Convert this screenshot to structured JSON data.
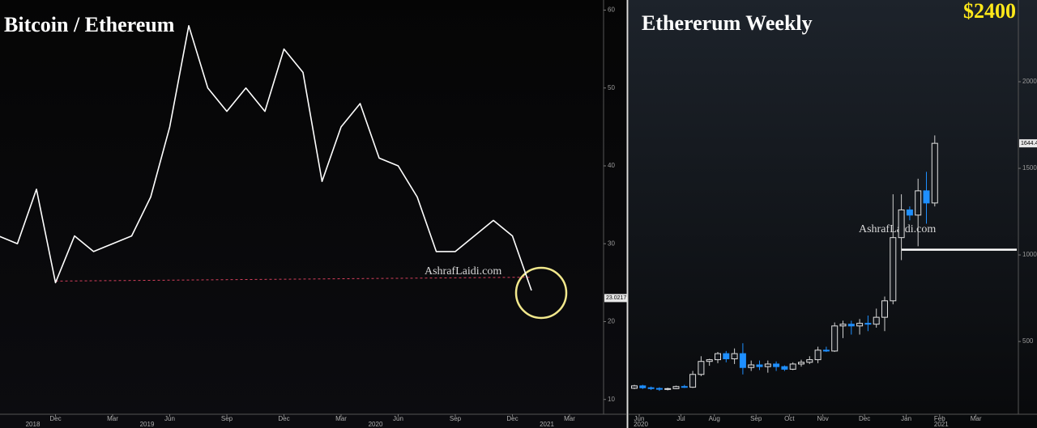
{
  "chart_data": [
    {
      "type": "line",
      "title": "Bitcoin / Ethereum",
      "watermark": "AshrafLaidi.com",
      "x": [
        "2018-09",
        "2018-10",
        "2018-11",
        "2018-12",
        "2019-01",
        "2019-02",
        "2019-03",
        "2019-04",
        "2019-05",
        "2019-06",
        "2019-07",
        "2019-08",
        "2019-09",
        "2019-10",
        "2019-11",
        "2019-12",
        "2020-01",
        "2020-02",
        "2020-03",
        "2020-04",
        "2020-05",
        "2020-06",
        "2020-07",
        "2020-08",
        "2020-09",
        "2020-10",
        "2020-11",
        "2020-12",
        "2021-01"
      ],
      "values": [
        31,
        30,
        37,
        25,
        31,
        29,
        30,
        31,
        36,
        45,
        58,
        50,
        47,
        50,
        47,
        55,
        52,
        38,
        45,
        48,
        41,
        40,
        36,
        29,
        29,
        31,
        33,
        31,
        24
      ],
      "color": "#ffffff",
      "ylim": [
        8.1,
        61.3
      ],
      "yticks": [
        10,
        20,
        30,
        40,
        50,
        60
      ],
      "xticks": [
        {
          "value": "2018-12",
          "label": "Dec"
        },
        {
          "value": "2019-03",
          "label": "Mar"
        },
        {
          "value": "2019-06",
          "label": "Jun"
        },
        {
          "value": "2019-09",
          "label": "Sep"
        },
        {
          "value": "2019-12",
          "label": "Dec"
        },
        {
          "value": "2020-03",
          "label": "Mar"
        },
        {
          "value": "2020-06",
          "label": "Jun"
        },
        {
          "value": "2020-09",
          "label": "Sep"
        },
        {
          "value": "2020-12",
          "label": "Dec"
        },
        {
          "value": "2021-03",
          "label": "Mar"
        }
      ],
      "year_labels": [
        {
          "value": "2018-12",
          "label": "2018"
        },
        {
          "value": "2019-06",
          "label": "2019"
        },
        {
          "value": "2020-06",
          "label": "2020"
        },
        {
          "value": "2021-03",
          "label": "2021"
        }
      ],
      "reference_line": {
        "x": [
          "2018-12",
          "2021-01"
        ],
        "y": [
          25.2,
          25.7
        ],
        "color": "#d6405c"
      },
      "last_price": 23.0217
    },
    {
      "type": "candlestick",
      "title": "Ethererum Weekly",
      "headline": "$2400",
      "watermark": "AshrafLaidi.com",
      "categories": [
        "2020-06",
        "2020-06",
        "2020-06",
        "2020-06",
        "2020-06",
        "2020-07",
        "2020-07",
        "2020-07",
        "2020-07",
        "2020-08",
        "2020-08",
        "2020-08",
        "2020-08",
        "2020-08",
        "2020-09",
        "2020-09",
        "2020-09",
        "2020-09",
        "2020-10",
        "2020-10",
        "2020-10",
        "2020-10",
        "2020-11",
        "2020-11",
        "2020-11",
        "2020-11",
        "2020-11",
        "2020-12",
        "2020-12",
        "2020-12",
        "2020-12",
        "2020-12",
        "2021-01",
        "2021-01",
        "2021-01",
        "2021-01",
        "2021-02"
      ],
      "open": [
        230,
        244,
        233,
        229,
        226,
        228,
        240,
        236,
        310,
        385,
        395,
        430,
        400,
        430,
        350,
        365,
        355,
        370,
        355,
        340,
        370,
        380,
        395,
        450,
        445,
        590,
        600,
        590,
        605,
        600,
        640,
        735,
        1100,
        1260,
        1230,
        1370,
        1300
      ],
      "high": [
        250,
        250,
        240,
        236,
        233,
        245,
        250,
        330,
        415,
        400,
        440,
        445,
        460,
        490,
        390,
        390,
        390,
        385,
        362,
        380,
        395,
        415,
        470,
        470,
        610,
        620,
        620,
        630,
        650,
        690,
        760,
        1350,
        1350,
        1280,
        1440,
        1480,
        1690
      ],
      "low": [
        225,
        226,
        220,
        215,
        218,
        225,
        232,
        232,
        300,
        360,
        375,
        380,
        370,
        310,
        330,
        335,
        320,
        330,
        330,
        335,
        355,
        370,
        375,
        440,
        440,
        520,
        540,
        540,
        560,
        580,
        560,
        715,
        970,
        1200,
        1050,
        1180,
        1280
      ],
      "close": [
        244,
        233,
        229,
        226,
        228,
        240,
        236,
        310,
        385,
        395,
        430,
        400,
        430,
        350,
        365,
        355,
        370,
        355,
        340,
        370,
        380,
        395,
        450,
        445,
        590,
        600,
        590,
        605,
        600,
        640,
        735,
        1100,
        1260,
        1230,
        1370,
        1300,
        1644.4
      ],
      "up_color": "#ffffff",
      "down_color": "#1e8fff",
      "ylim": [
        80,
        2472
      ],
      "yticks": [
        500,
        1000,
        1500,
        2000
      ],
      "xticks": [
        {
          "value": "2020-06",
          "label": "Jun"
        },
        {
          "value": "2020-07",
          "label": "Jul"
        },
        {
          "value": "2020-08",
          "label": "Aug"
        },
        {
          "value": "2020-09",
          "label": "Sep"
        },
        {
          "value": "2020-10",
          "label": "Oct"
        },
        {
          "value": "2020-11",
          "label": "Nov"
        },
        {
          "value": "2020-12",
          "label": "Dec"
        },
        {
          "value": "2021-01",
          "label": "Jan"
        },
        {
          "value": "2021-02",
          "label": "Feb"
        },
        {
          "value": "2021-03",
          "label": "Mar"
        }
      ],
      "year_labels": [
        {
          "value": "2020-06",
          "label": "2020"
        },
        {
          "value": "2021-02",
          "label": "2021"
        }
      ],
      "level": 1030,
      "last_price": 1644.4
    }
  ]
}
